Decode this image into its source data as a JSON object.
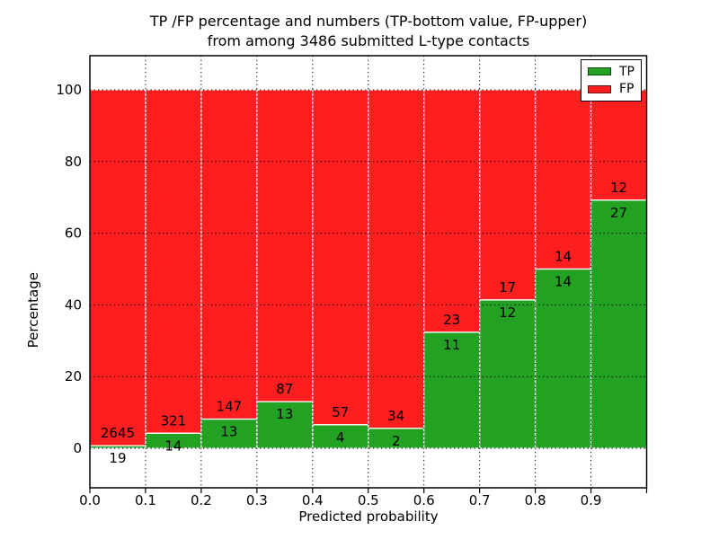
{
  "chart_data": {
    "type": "bar",
    "stacked_percentage": true,
    "title_line1": "TP /FP percentage and numbers (TP-bottom value, FP-upper)",
    "title_line2": "from among 3486 submitted L-type contacts",
    "xlabel": "Predicted probability",
    "ylabel": "Percentage",
    "total_contacts": 3486,
    "bin_starts": [
      0.0,
      0.1,
      0.2,
      0.3,
      0.4,
      0.5,
      0.6,
      0.7,
      0.8,
      0.9
    ],
    "bin_width": 0.1,
    "series": [
      {
        "name": "TP",
        "color": "#22a122",
        "values": [
          19,
          14,
          13,
          13,
          4,
          2,
          11,
          12,
          14,
          27
        ]
      },
      {
        "name": "FP",
        "color": "#fd1f1f",
        "values": [
          2645,
          321,
          147,
          87,
          57,
          34,
          23,
          17,
          14,
          12
        ]
      }
    ],
    "tp_percent_of_bin": [
      0.71,
      4.18,
      8.13,
      13.0,
      6.56,
      5.56,
      32.35,
      41.38,
      50.0,
      69.23
    ],
    "x_tick_labels": [
      "0.0",
      "0.1",
      "0.2",
      "0.3",
      "0.4",
      "0.5",
      "0.6",
      "0.7",
      "0.8",
      "0.9"
    ],
    "y_ticks": [
      0,
      20,
      40,
      60,
      80,
      100
    ],
    "xlim": [
      0,
      1.0
    ],
    "ylim": [
      -11,
      109.5
    ],
    "grid": "dotted, drawn above bars",
    "bar_edge_color": "#ffffff",
    "legend": {
      "position": "upper right",
      "items": [
        {
          "label": "TP",
          "color": "#22a122"
        },
        {
          "label": "FP",
          "color": "#fd1f1f"
        }
      ]
    }
  }
}
